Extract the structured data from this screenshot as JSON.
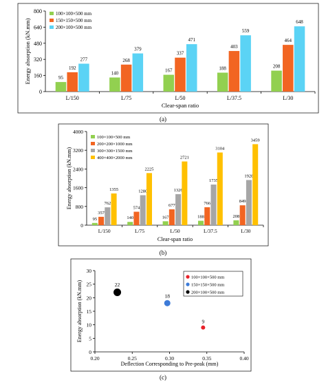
{
  "chart_data": [
    {
      "type": "bar",
      "caption": "(a)",
      "categories": [
        "L/150",
        "L/75",
        "L/50",
        "L/37.5",
        "L/30"
      ],
      "series": [
        {
          "name": "100×100×500 mm",
          "values": [
            95,
            140,
            167,
            188,
            208
          ],
          "color": "#92d050"
        },
        {
          "name": "150×150×500 mm",
          "values": [
            192,
            268,
            337,
            403,
            464
          ],
          "color": "#f26522"
        },
        {
          "name": "200×100×500 mm",
          "values": [
            277,
            379,
            471,
            559,
            648
          ],
          "color": "#5bd3f5"
        }
      ],
      "xlabel": "Clear-span ratio",
      "ylabel": "Energy absorption (kN.mm)",
      "ylim": [
        0,
        800
      ],
      "yticks": [
        0,
        160,
        320,
        480,
        640,
        800
      ],
      "legend_position": "top-left",
      "grid": false
    },
    {
      "type": "bar",
      "caption": "(b)",
      "categories": [
        "L/150",
        "L/75",
        "L/50",
        "L/37.5",
        "L/30"
      ],
      "series": [
        {
          "name": "100×100×500 mm",
          "values": [
            95,
            140,
            167,
            188,
            208
          ],
          "color": "#92d050"
        },
        {
          "name": "200×200×1000 mm",
          "values": [
            357,
            574,
            677,
            766,
            849
          ],
          "color": "#f26522"
        },
        {
          "name": "300×300×1500 mm",
          "values": [
            762,
            1280,
            1326,
            1735,
            1928
          ],
          "color": "#a6a6a6"
        },
        {
          "name": "400×400×2000 mm",
          "values": [
            1355,
            2225,
            2721,
            3104,
            3459
          ],
          "color": "#ffc000"
        }
      ],
      "xlabel": "Clear-span ratio",
      "ylabel": "Energy absorption (kN.mm)",
      "ylim": [
        0,
        4000
      ],
      "yticks": [
        0,
        800,
        1600,
        2400,
        3200,
        4000
      ],
      "legend_position": "top-left",
      "grid": false
    },
    {
      "type": "scatter",
      "caption": "(c)",
      "series": [
        {
          "name": "100×100×500 mm",
          "x": 0.345,
          "y": 9,
          "label": "9",
          "color": "#e8222a",
          "size": 3
        },
        {
          "name": "150×150×500 mm",
          "x": 0.297,
          "y": 18,
          "label": "18",
          "color": "#3d7bd8",
          "size": 4.5
        },
        {
          "name": "200×100×500 mm",
          "x": 0.23,
          "y": 22,
          "label": "22",
          "color": "#000000",
          "size": 5.5
        }
      ],
      "xlabel": "Deflection Corresponding to Pre-peak (mm)",
      "ylabel": "Energy absorption (kN.mm)",
      "xlim": [
        0.2,
        0.4
      ],
      "xticks": [
        "0.20",
        "0.25",
        "0.30",
        "0.35",
        "0.40"
      ],
      "ylim": [
        0,
        30
      ],
      "yticks": [
        0,
        5,
        10,
        15,
        20,
        25,
        30
      ],
      "legend_position": "top-right",
      "grid": false
    }
  ]
}
